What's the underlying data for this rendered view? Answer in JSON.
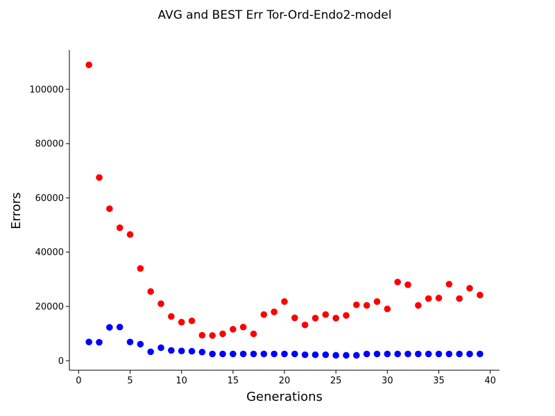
{
  "chart_data": {
    "type": "scatter",
    "title": "AVG and BEST Err Tor-Ord-Endo2-model",
    "xlabel": "Generations",
    "ylabel": "Errors",
    "xlim": [
      -0.9,
      40.9
    ],
    "ylim": [
      -3500,
      114500
    ],
    "xticks": [
      0,
      5,
      10,
      15,
      20,
      25,
      30,
      35,
      40
    ],
    "yticks": [
      0,
      20000,
      40000,
      60000,
      80000,
      100000
    ],
    "grid": false,
    "spines": [
      "left",
      "bottom"
    ],
    "series": [
      {
        "color": "#ff0000",
        "x": [
          1,
          2,
          3,
          4,
          5,
          6,
          7,
          8,
          9,
          10,
          11,
          12,
          13,
          14,
          15,
          16,
          17,
          18,
          19,
          20,
          21,
          22,
          23,
          24,
          25,
          26,
          27,
          28,
          29,
          30,
          31,
          32,
          33,
          34,
          35,
          36,
          37,
          38,
          39
        ],
        "y": [
          109000,
          67500,
          56000,
          49000,
          46500,
          34000,
          25500,
          21000,
          16300,
          14200,
          14700,
          9400,
          9300,
          9900,
          11600,
          12400,
          9900,
          17000,
          18000,
          21800,
          15800,
          13200,
          15700,
          17000,
          15700,
          16700,
          20600,
          20400,
          21800,
          19100,
          29000,
          28000,
          20400,
          22900,
          23100,
          28200,
          22900,
          26700,
          24200
        ]
      },
      {
        "color": "#0000ff",
        "x": [
          1,
          2,
          3,
          4,
          5,
          6,
          7,
          8,
          9,
          10,
          11,
          12,
          13,
          14,
          15,
          16,
          17,
          18,
          19,
          20,
          21,
          22,
          23,
          24,
          25,
          26,
          27,
          28,
          29,
          30,
          31,
          32,
          33,
          34,
          35,
          36,
          37,
          38,
          39
        ],
        "y": [
          6900,
          6800,
          12300,
          12400,
          6900,
          6100,
          3300,
          4800,
          3800,
          3600,
          3500,
          3200,
          2500,
          2500,
          2500,
          2500,
          2500,
          2500,
          2500,
          2500,
          2500,
          2200,
          2200,
          2200,
          2000,
          2000,
          2000,
          2500,
          2500,
          2500,
          2500,
          2500,
          2500,
          2500,
          2500,
          2500,
          2500,
          2500,
          2500
        ]
      }
    ]
  }
}
